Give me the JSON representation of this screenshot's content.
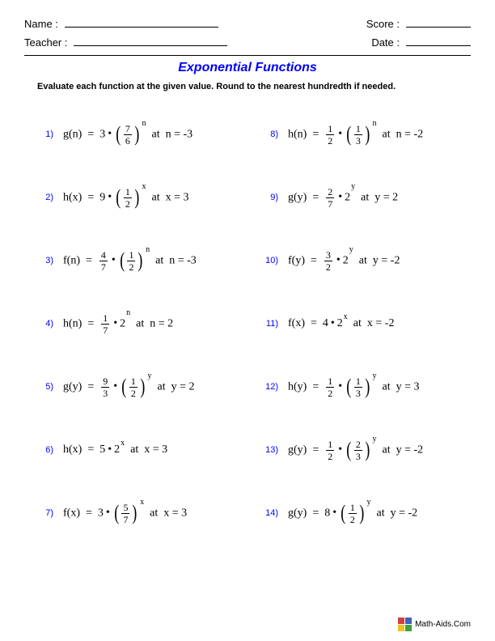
{
  "header": {
    "name_label": "Name :",
    "teacher_label": "Teacher :",
    "score_label": "Score :",
    "date_label": "Date :"
  },
  "title": {
    "text": "Exponential Functions",
    "color": "#0000ff"
  },
  "instructions": "Evaluate each function at the given value. Round to the nearest hundredth if needed.",
  "number_color": "#0000ff",
  "layout": {
    "name_line_width": 190,
    "teacher_line_width": 190,
    "score_line_width": 80,
    "date_line_width": 80
  },
  "problems_left": [
    {
      "n": "1)",
      "func": "g(n)",
      "coef": "3",
      "coef_is_frac": false,
      "base_type": "frac",
      "base_num": "7",
      "base_den": "6",
      "exp": "n",
      "at_var": "n",
      "at_val": "-3"
    },
    {
      "n": "2)",
      "func": "h(x)",
      "coef": "9",
      "coef_is_frac": false,
      "base_type": "frac",
      "base_num": "1",
      "base_den": "2",
      "exp": "x",
      "at_var": "x",
      "at_val": "3"
    },
    {
      "n": "3)",
      "func": "f(n)",
      "coef_num": "4",
      "coef_den": "7",
      "coef_is_frac": true,
      "base_type": "frac",
      "base_num": "1",
      "base_den": "2",
      "exp": "n",
      "at_var": "n",
      "at_val": "-3"
    },
    {
      "n": "4)",
      "func": "h(n)",
      "coef_num": "1",
      "coef_den": "7",
      "coef_is_frac": true,
      "base_type": "int",
      "base": "2",
      "exp": "n",
      "at_var": "n",
      "at_val": "2"
    },
    {
      "n": "5)",
      "func": "g(y)",
      "coef_num": "9",
      "coef_den": "3",
      "coef_is_frac": true,
      "base_type": "frac",
      "base_num": "1",
      "base_den": "2",
      "exp": "y",
      "at_var": "y",
      "at_val": "2"
    },
    {
      "n": "6)",
      "func": "h(x)",
      "coef": "5",
      "coef_is_frac": false,
      "base_type": "int",
      "base": "2",
      "exp": "x",
      "at_var": "x",
      "at_val": "3"
    },
    {
      "n": "7)",
      "func": "f(x)",
      "coef": "3",
      "coef_is_frac": false,
      "base_type": "frac",
      "base_num": "5",
      "base_den": "7",
      "exp": "x",
      "at_var": "x",
      "at_val": "3"
    }
  ],
  "problems_right": [
    {
      "n": "8)",
      "func": "h(n)",
      "coef_num": "1",
      "coef_den": "2",
      "coef_is_frac": true,
      "base_type": "frac",
      "base_num": "1",
      "base_den": "3",
      "exp": "n",
      "at_var": "n",
      "at_val": "-2"
    },
    {
      "n": "9)",
      "func": "g(y)",
      "coef_num": "2",
      "coef_den": "7",
      "coef_is_frac": true,
      "base_type": "int",
      "base": "2",
      "exp": "y",
      "at_var": "y",
      "at_val": "2"
    },
    {
      "n": "10)",
      "func": "f(y)",
      "coef_num": "3",
      "coef_den": "2",
      "coef_is_frac": true,
      "base_type": "int",
      "base": "2",
      "exp": "y",
      "at_var": "y",
      "at_val": "-2"
    },
    {
      "n": "11)",
      "func": "f(x)",
      "coef": "4",
      "coef_is_frac": false,
      "base_type": "int",
      "base": "2",
      "exp": "x",
      "at_var": "x",
      "at_val": "-2"
    },
    {
      "n": "12)",
      "func": "h(y)",
      "coef_num": "1",
      "coef_den": "2",
      "coef_is_frac": true,
      "base_type": "frac",
      "base_num": "1",
      "base_den": "3",
      "exp": "y",
      "at_var": "y",
      "at_val": "3"
    },
    {
      "n": "13)",
      "func": "g(y)",
      "coef_num": "1",
      "coef_den": "2",
      "coef_is_frac": true,
      "base_type": "frac",
      "base_num": "2",
      "base_den": "3",
      "exp": "y",
      "at_var": "y",
      "at_val": "-2"
    },
    {
      "n": "14)",
      "func": "g(y)",
      "coef": "8",
      "coef_is_frac": false,
      "base_type": "frac",
      "base_num": "1",
      "base_den": "2",
      "exp": "y",
      "at_var": "y",
      "at_val": "-2"
    }
  ],
  "footer": {
    "text": "Math-Aids.Com",
    "icon_colors": [
      "#d04040",
      "#4060c0",
      "#f0c020",
      "#40a040"
    ]
  }
}
